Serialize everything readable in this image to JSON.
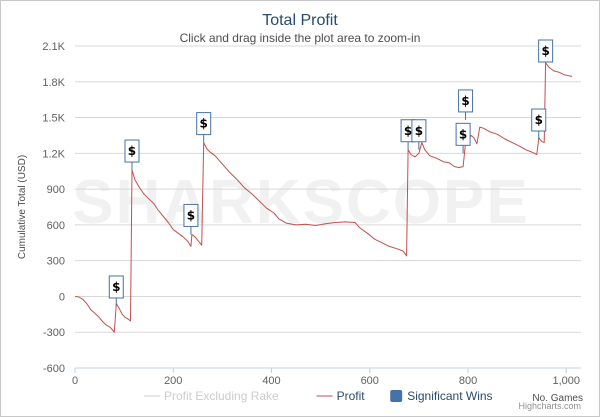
{
  "chart_data": {
    "type": "line",
    "title": "Total Profit",
    "subtitle": "Click and drag inside the plot area to zoom-in",
    "xlabel": "No. Games",
    "ylabel": "Cumulative Total (USD)",
    "xlim": [
      0,
      1030
    ],
    "ylim": [
      -600,
      2100
    ],
    "x_ticks": [
      0,
      200,
      400,
      600,
      800,
      1000
    ],
    "x_tick_labels": [
      "0",
      "200",
      "400",
      "600",
      "800",
      "1,000"
    ],
    "y_ticks": [
      -600,
      -300,
      0,
      300,
      600,
      900,
      1200,
      1500,
      1800,
      2100
    ],
    "y_tick_labels": [
      "-600",
      "-300",
      "0",
      "300",
      "600",
      "900",
      "1.2K",
      "1.5K",
      "1.8K",
      "2.1K"
    ],
    "watermark": "SHARKSCOPE",
    "series": [
      {
        "name": "Profit",
        "color": "#c0504d",
        "points": [
          [
            0,
            0
          ],
          [
            8,
            -5
          ],
          [
            16,
            -25
          ],
          [
            24,
            -60
          ],
          [
            32,
            -110
          ],
          [
            40,
            -140
          ],
          [
            48,
            -170
          ],
          [
            56,
            -210
          ],
          [
            64,
            -240
          ],
          [
            72,
            -260
          ],
          [
            80,
            -300
          ],
          [
            84,
            -60
          ],
          [
            90,
            -100
          ],
          [
            96,
            -150
          ],
          [
            102,
            -175
          ],
          [
            108,
            -190
          ],
          [
            113,
            -205
          ],
          [
            116,
            1060
          ],
          [
            122,
            980
          ],
          [
            130,
            920
          ],
          [
            140,
            860
          ],
          [
            150,
            820
          ],
          [
            160,
            780
          ],
          [
            170,
            720
          ],
          [
            180,
            670
          ],
          [
            190,
            620
          ],
          [
            200,
            560
          ],
          [
            210,
            530
          ],
          [
            220,
            500
          ],
          [
            230,
            460
          ],
          [
            236,
            420
          ],
          [
            238,
            520
          ],
          [
            244,
            500
          ],
          [
            252,
            460
          ],
          [
            258,
            430
          ],
          [
            262,
            1290
          ],
          [
            268,
            1240
          ],
          [
            275,
            1210
          ],
          [
            285,
            1180
          ],
          [
            300,
            1110
          ],
          [
            315,
            1040
          ],
          [
            330,
            980
          ],
          [
            345,
            910
          ],
          [
            360,
            860
          ],
          [
            375,
            800
          ],
          [
            390,
            740
          ],
          [
            405,
            700
          ],
          [
            415,
            650
          ],
          [
            430,
            615
          ],
          [
            450,
            600
          ],
          [
            470,
            605
          ],
          [
            490,
            595
          ],
          [
            510,
            610
          ],
          [
            530,
            620
          ],
          [
            550,
            625
          ],
          [
            570,
            620
          ],
          [
            580,
            575
          ],
          [
            595,
            530
          ],
          [
            610,
            480
          ],
          [
            625,
            450
          ],
          [
            640,
            420
          ],
          [
            655,
            400
          ],
          [
            668,
            380
          ],
          [
            675,
            340
          ],
          [
            678,
            1230
          ],
          [
            684,
            1190
          ],
          [
            692,
            1170
          ],
          [
            700,
            1200
          ],
          [
            706,
            1290
          ],
          [
            712,
            1230
          ],
          [
            722,
            1180
          ],
          [
            735,
            1160
          ],
          [
            750,
            1130
          ],
          [
            762,
            1120
          ],
          [
            772,
            1090
          ],
          [
            782,
            1080
          ],
          [
            790,
            1090
          ],
          [
            795,
            1290
          ],
          [
            800,
            1310
          ],
          [
            806,
            1350
          ],
          [
            812,
            1330
          ],
          [
            818,
            1280
          ],
          [
            824,
            1420
          ],
          [
            832,
            1410
          ],
          [
            845,
            1380
          ],
          [
            860,
            1360
          ],
          [
            875,
            1320
          ],
          [
            890,
            1290
          ],
          [
            905,
            1260
          ],
          [
            918,
            1230
          ],
          [
            930,
            1210
          ],
          [
            940,
            1190
          ],
          [
            944,
            1330
          ],
          [
            950,
            1300
          ],
          [
            955,
            1290
          ],
          [
            958,
            1960
          ],
          [
            965,
            1920
          ],
          [
            975,
            1890
          ],
          [
            985,
            1880
          ],
          [
            995,
            1860
          ],
          [
            1005,
            1850
          ],
          [
            1012,
            1845
          ]
        ]
      }
    ],
    "significant_wins": [
      {
        "x": 84,
        "y": -80
      },
      {
        "x": 116,
        "y": 1060
      },
      {
        "x": 236,
        "y": 520
      },
      {
        "x": 262,
        "y": 1290
      },
      {
        "x": 678,
        "y": 1230
      },
      {
        "x": 700,
        "y": 1230
      },
      {
        "x": 790,
        "y": 1200
      },
      {
        "x": 795,
        "y": 1480
      },
      {
        "x": 944,
        "y": 1320
      },
      {
        "x": 958,
        "y": 2050
      }
    ],
    "significant_win_symbol": "$",
    "legend": [
      {
        "label": "Profit Excluding Rake",
        "color": "#cccccc",
        "kind": "line",
        "hidden": true
      },
      {
        "label": "Profit",
        "color": "#c0504d",
        "kind": "line",
        "hidden": false
      },
      {
        "label": "Significant Wins",
        "color": "#4572a7",
        "kind": "box",
        "hidden": false
      }
    ],
    "credits": "Highcharts.com"
  }
}
